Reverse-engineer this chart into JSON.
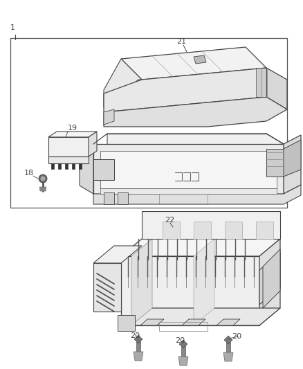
{
  "bg_color": "#ffffff",
  "lc": "#444444",
  "fs": 8,
  "fig_w": 4.38,
  "fig_h": 5.33,
  "dpi": 100
}
